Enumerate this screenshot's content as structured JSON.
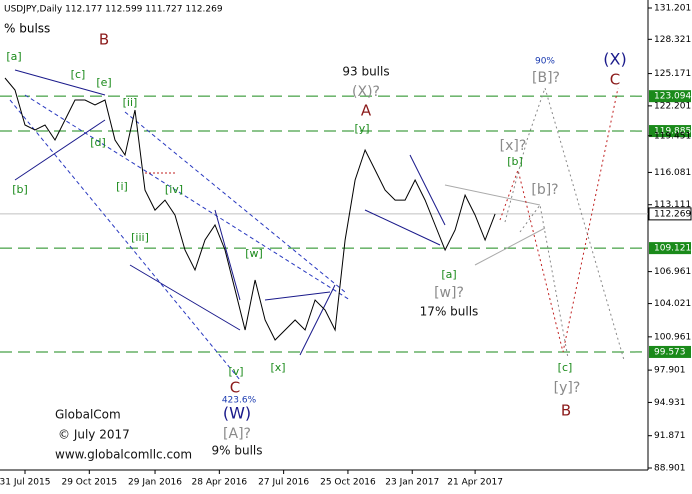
{
  "chart_data": {
    "type": "line",
    "title": "USDJPY,Daily  112.177 112.599 111.727 112.269",
    "subtitle": "% bulss",
    "watermark": [
      "GlobalCom",
      "© July 2017",
      "www.globalcomllc.com"
    ],
    "color": "#000000",
    "x": [
      "2015-07-03",
      "2015-07-17",
      "2015-07-31",
      "2015-08-14",
      "2015-08-28",
      "2015-09-11",
      "2015-09-25",
      "2015-10-09",
      "2015-10-23",
      "2015-11-06",
      "2015-11-20",
      "2015-12-04",
      "2015-12-18",
      "2016-01-01",
      "2016-01-15",
      "2016-01-29",
      "2016-02-12",
      "2016-02-26",
      "2016-03-11",
      "2016-03-25",
      "2016-04-08",
      "2016-04-22",
      "2016-05-06",
      "2016-05-20",
      "2016-06-03",
      "2016-06-17",
      "2016-07-01",
      "2016-07-15",
      "2016-07-29",
      "2016-08-12",
      "2016-08-26",
      "2016-09-09",
      "2016-09-23",
      "2016-10-07",
      "2016-10-21",
      "2016-11-04",
      "2016-11-18",
      "2016-12-02",
      "2016-12-16",
      "2016-12-30",
      "2017-01-13",
      "2017-01-27",
      "2017-02-10",
      "2017-02-24",
      "2017-03-10",
      "2017-03-24",
      "2017-04-07",
      "2017-04-21",
      "2017-05-05",
      "2017-05-19"
    ],
    "values": [
      124.76,
      123.66,
      120.44,
      119.98,
      120.44,
      119.06,
      120.9,
      122.74,
      122.74,
      122.28,
      122.74,
      119.06,
      117.68,
      121.82,
      114.46,
      112.62,
      113.54,
      112.16,
      108.95,
      107.11,
      109.87,
      111.25,
      108.95,
      105.27,
      101.59,
      106.19,
      102.51,
      100.67,
      101.59,
      102.51,
      101.59,
      104.35,
      103.43,
      101.59,
      109.87,
      115.38,
      118.14,
      116.3,
      114.46,
      113.54,
      113.54,
      115.38,
      113.54,
      111.25,
      108.95,
      110.79,
      114.0,
      112.16,
      109.87,
      112.269
    ],
    "xlim": [
      "2015-06-26",
      "2017-12-19"
    ],
    "xticks": [
      {
        "value": "2015-07-31",
        "label": "31 Jul 2015"
      },
      {
        "value": "2015-10-29",
        "label": "29 Oct 2015"
      },
      {
        "value": "2016-01-29",
        "label": "29 Jan 2016"
      },
      {
        "value": "2016-04-28",
        "label": "28 Apr 2016"
      },
      {
        "value": "2016-07-27",
        "label": "27 Jul 2016"
      },
      {
        "value": "2016-10-25",
        "label": "25 Oct 2016"
      },
      {
        "value": "2017-01-23",
        "label": "23 Jan 2017"
      },
      {
        "value": "2017-04-21",
        "label": "21 Apr 2017"
      }
    ],
    "ylim": [
      88.901,
      131.201
    ],
    "yticks": [
      88.901,
      91.871,
      94.931,
      97.901,
      100.961,
      104.021,
      106.961,
      113.111,
      116.081,
      119.451,
      122.201,
      125.171,
      128.321,
      131.201
    ],
    "levels": [
      {
        "value": 123.094,
        "color": "#1a8a1a"
      },
      {
        "value": 119.885,
        "color": "#1a8a1a"
      },
      {
        "value": 109.121,
        "color": "#1a8a1a"
      },
      {
        "value": 99.573,
        "color": "#1a8a1a"
      },
      {
        "value": 112.269,
        "color": "#c0c0c0"
      }
    ],
    "annotations": [
      "[a]",
      "[b]",
      "[c]",
      "B",
      "[e]",
      "[d]",
      "[ii]",
      "[i]",
      "[iv]",
      "[iii]",
      "[w]",
      "[v]",
      "C",
      "423.6%",
      "(W)",
      "[A]?",
      "9% bulls",
      "[x]",
      "93 bulls",
      "(X)?",
      "A",
      "[y]",
      "[x]?",
      "[b]",
      "[b]?",
      "[a]",
      "[w]?",
      "17% bulls",
      "90%",
      "[B]?",
      "(X)",
      "C",
      "[c]",
      "[y]?",
      "B"
    ]
  }
}
